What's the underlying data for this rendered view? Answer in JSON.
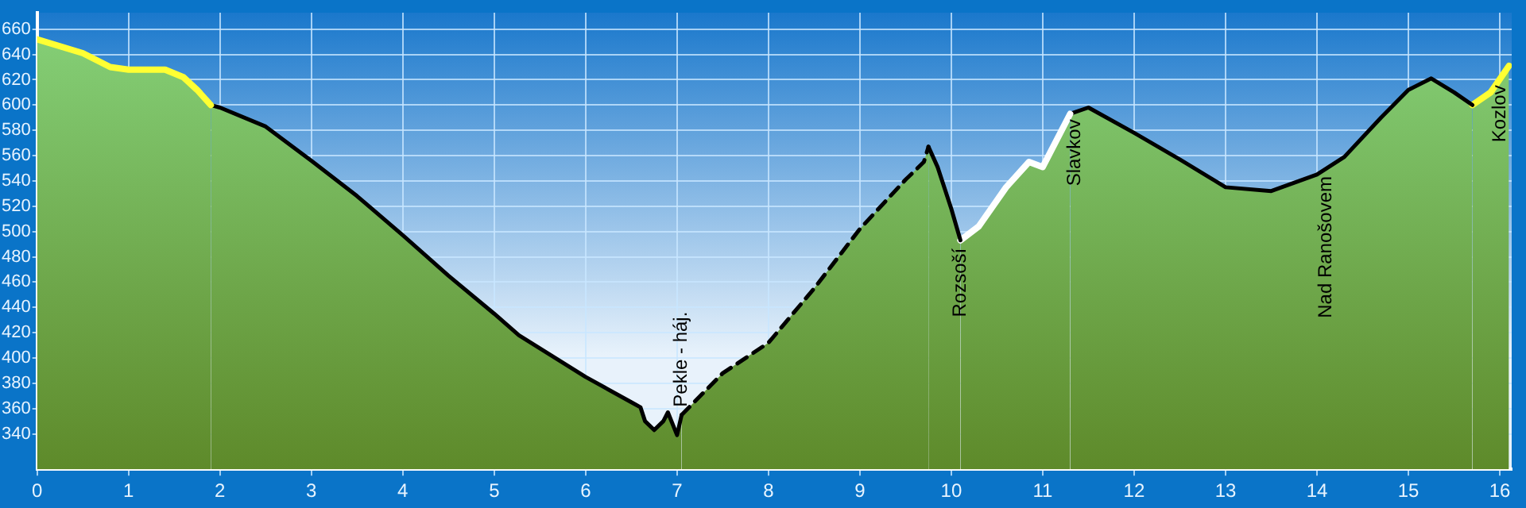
{
  "chart_data": {
    "type": "area",
    "color": "#86d27a",
    "series": [
      {
        "color": "#ffff33",
        "x": [
          0,
          0.5,
          0.8,
          1.0,
          1.4,
          1.6,
          1.75,
          1.9
        ],
        "values": [
          652,
          641,
          630,
          628,
          628,
          622,
          612,
          600
        ]
      },
      {
        "color": "#000000",
        "x": [
          1.9,
          2.0,
          2.5,
          3.0,
          3.5,
          4.0,
          4.5,
          5.0,
          5.27,
          6.0,
          6.5,
          6.6,
          6.65,
          6.75,
          6.85,
          6.9,
          7.0,
          7.05
        ],
        "values": [
          600,
          598,
          583,
          556,
          528,
          497,
          465,
          435,
          418,
          385,
          365,
          361,
          350,
          343,
          350,
          357,
          339,
          355
        ]
      },
      {
        "color": "#000000",
        "line_style": "dashed",
        "x": [
          7.05,
          7.5,
          8.0,
          8.5,
          9.0,
          9.5,
          9.7,
          9.75
        ],
        "values": [
          355,
          388,
          412,
          455,
          502,
          541,
          555,
          567
        ]
      },
      {
        "color": "#000000",
        "x": [
          9.75,
          9.85,
          10.0,
          10.1
        ],
        "values": [
          567,
          551,
          518,
          493
        ]
      },
      {
        "color": "#ffffff",
        "x": [
          10.1,
          10.3,
          10.6,
          10.85,
          11.0,
          11.3
        ],
        "values": [
          493,
          504,
          535,
          555,
          551,
          593
        ]
      },
      {
        "color": "#000000",
        "x": [
          11.3,
          11.5,
          12.0,
          12.5,
          13.0,
          13.5,
          14.0,
          14.3,
          14.7,
          15.0,
          15.25,
          15.5,
          15.7
        ],
        "values": [
          593,
          598,
          578,
          557,
          535,
          532,
          545,
          559,
          590,
          612,
          621,
          610,
          600
        ]
      },
      {
        "color": "#ffff33",
        "x": [
          15.7,
          15.9,
          16.1
        ],
        "values": [
          600,
          610,
          631
        ]
      }
    ],
    "xlim": [
      0,
      16.13
    ],
    "xticks": [
      0,
      1,
      2,
      3,
      4,
      5,
      6,
      7,
      8,
      9,
      10,
      11,
      12,
      13,
      14,
      15,
      16
    ],
    "ylim": [
      312,
      673
    ],
    "yticks": [
      340,
      360,
      380,
      400,
      420,
      440,
      460,
      480,
      500,
      520,
      540,
      560,
      580,
      600,
      620,
      640,
      660
    ],
    "grid": true,
    "legend": false,
    "marker": "none",
    "annotations": [
      {
        "text": "Pekle - háj.",
        "x": 7.05,
        "y": 355
      },
      {
        "text": "Rozsoší",
        "x": 10.1,
        "y": 493
      },
      {
        "text": "Slavkov",
        "x": 11.35,
        "y": 595
      },
      {
        "text": "Nad Ranošovem",
        "x": 14.1,
        "y": 550
      },
      {
        "text": "Kozlov",
        "x": 16.0,
        "y": 622
      }
    ]
  }
}
